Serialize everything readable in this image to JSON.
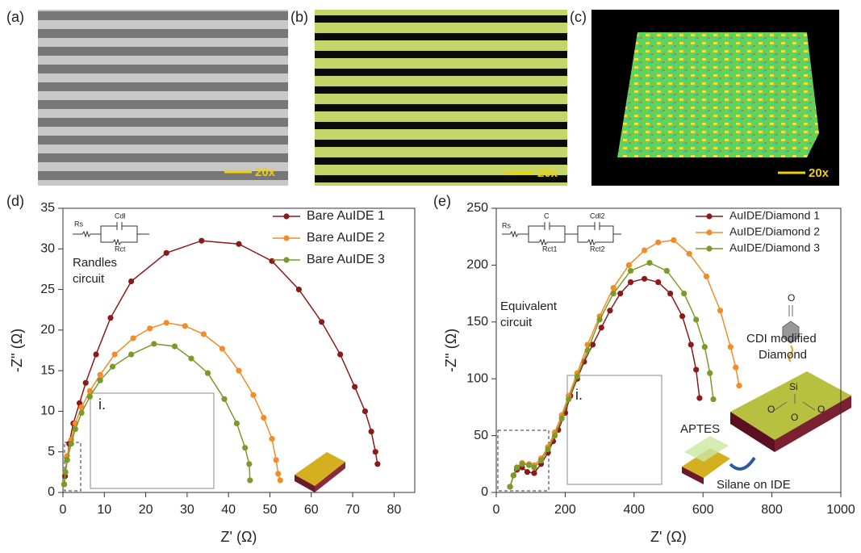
{
  "panels": {
    "a": {
      "label": "(a)",
      "scale": "20x"
    },
    "b": {
      "label": "(b)",
      "scale": "20x"
    },
    "c": {
      "label": "(c)",
      "scale": "20x"
    }
  },
  "chart_data": [
    {
      "type": "line",
      "panel_label": "(d)",
      "xlabel": "Z' (Ω)",
      "ylabel": "-Z'' (Ω)",
      "xlim": [
        0,
        85
      ],
      "ylim": [
        0,
        35
      ],
      "xticks": [
        0,
        10,
        20,
        30,
        40,
        50,
        60,
        70,
        80
      ],
      "yticks": [
        0,
        5,
        10,
        15,
        20,
        25,
        30,
        35
      ],
      "legend": "upper right",
      "inset_label": "i.",
      "annotations": {
        "circuit": [
          "Randles",
          "circuit"
        ],
        "rs": "Rs",
        "c": "Cdl",
        "r": "Rct"
      },
      "series": [
        {
          "name": "Bare AuIDE 1",
          "color": "#8b1a1a",
          "x": [
            0.3,
            0.5,
            1,
            1.5,
            2.5,
            4,
            5.5,
            8,
            11.5,
            16.5,
            25,
            33.5,
            42.5,
            50.5,
            57,
            62.5,
            67,
            70.5,
            73,
            74.5,
            75.5,
            76
          ],
          "values": [
            1,
            2,
            4,
            6,
            8.5,
            11,
            13.5,
            17,
            21.5,
            26,
            29.5,
            31,
            30.6,
            28.5,
            25,
            21,
            17,
            13,
            10,
            7.5,
            5,
            3.5
          ]
        },
        {
          "name": "Bare AuIDE 2",
          "color": "#f28c28",
          "x": [
            0.3,
            0.6,
            1,
            2,
            3,
            4.5,
            6.5,
            9,
            12.5,
            17,
            21,
            25,
            29.5,
            34,
            38.5,
            42.5,
            46,
            48.5,
            50.5,
            51.5,
            52,
            52.5
          ],
          "values": [
            1,
            2.5,
            4.5,
            6.5,
            8.5,
            10.5,
            12.5,
            14.5,
            17,
            19,
            20.2,
            20.9,
            20.5,
            19.5,
            17.7,
            15,
            12,
            9.2,
            6.6,
            4,
            2.3,
            1.5
          ]
        },
        {
          "name": "Bare AuIDE 3",
          "color": "#7a9a2a",
          "x": [
            0.3,
            0.6,
            1,
            2,
            3,
            4.5,
            6.5,
            9,
            12,
            16.5,
            22,
            27,
            31,
            35,
            39,
            42,
            44,
            45,
            45.2
          ],
          "values": [
            1,
            2.5,
            4,
            6,
            7.8,
            9.8,
            11.8,
            13.8,
            15.5,
            17,
            18.3,
            18,
            16.5,
            14.7,
            11.5,
            8.5,
            5.5,
            3.5,
            1.5
          ]
        }
      ]
    },
    {
      "type": "line",
      "panel_label": "(e)",
      "xlabel": "Z' (Ω)",
      "ylabel": "-Z'' (Ω)",
      "xlim": [
        0,
        1000
      ],
      "ylim": [
        0,
        250
      ],
      "xticks": [
        0,
        200,
        400,
        600,
        800,
        1000
      ],
      "yticks": [
        0,
        50,
        100,
        150,
        200,
        250
      ],
      "legend": "upper right",
      "inset_label": "i.",
      "annotations": {
        "circuit": [
          "Equivalent",
          "circuit"
        ],
        "rs": "Rs",
        "c": "C",
        "r": "Rct1",
        "c2": "Cdl2",
        "r2": "Rct2",
        "cdi": [
          "CDI modified",
          "Diamond"
        ],
        "aptes": "APTES",
        "silane": "Silane on IDE",
        "si": "Si",
        "o": "O"
      },
      "series": [
        {
          "name": "AuIDE/Diamond 1",
          "color": "#8b1a1a",
          "x": [
            40,
            50,
            60,
            75,
            90,
            110,
            130,
            150,
            165,
            180,
            200,
            215,
            235,
            255,
            280,
            305,
            330,
            360,
            390,
            430,
            470,
            505,
            540,
            565,
            580,
            590
          ],
          "values": [
            5,
            15,
            20,
            22,
            18,
            17,
            25,
            35,
            45,
            55,
            70,
            85,
            100,
            115,
            130,
            145,
            160,
            175,
            185,
            188,
            185,
            175,
            155,
            130,
            108,
            83
          ]
        },
        {
          "name": "AuIDE/Diamond 2",
          "color": "#f28c28",
          "x": [
            40,
            50,
            60,
            75,
            95,
            110,
            130,
            150,
            170,
            190,
            210,
            235,
            265,
            300,
            340,
            385,
            430,
            470,
            515,
            560,
            610,
            650,
            680,
            695,
            705
          ],
          "values": [
            5,
            15,
            22,
            26,
            25,
            24,
            30,
            40,
            53,
            68,
            85,
            105,
            130,
            155,
            180,
            200,
            213,
            220,
            222,
            210,
            190,
            160,
            128,
            110,
            94
          ]
        },
        {
          "name": "AuIDE/Diamond 3",
          "color": "#7a9a2a",
          "x": [
            40,
            50,
            60,
            75,
            95,
            110,
            130,
            150,
            170,
            190,
            210,
            235,
            265,
            300,
            340,
            390,
            445,
            495,
            545,
            580,
            605,
            620,
            630
          ],
          "values": [
            5,
            15,
            22,
            25,
            24,
            22,
            28,
            38,
            50,
            65,
            82,
            102,
            125,
            152,
            175,
            195,
            202,
            195,
            175,
            152,
            128,
            105,
            82
          ]
        }
      ]
    }
  ]
}
